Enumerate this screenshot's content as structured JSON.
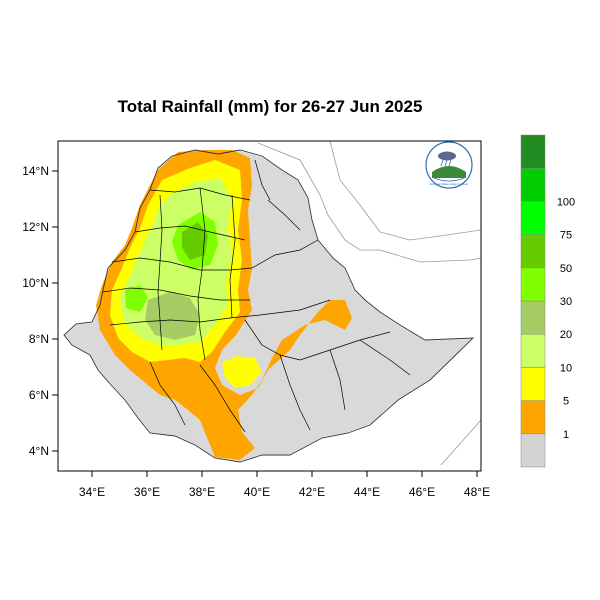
{
  "title": "Total Rainfall (mm) for 26-27 Jun 2025",
  "axes": {
    "lat_ticks": [
      "14°N",
      "12°N",
      "10°N",
      "8°N",
      "6°N",
      "4°N"
    ],
    "lon_ticks": [
      "34°E",
      "36°E",
      "38°E",
      "40°E",
      "42°E",
      "44°E",
      "46°E",
      "48°E"
    ]
  },
  "legend": {
    "units": "mm",
    "classes": [
      {
        "color": "#d3d3d3"
      },
      {
        "color": "#ffa500"
      },
      {
        "color": "#ffff00"
      },
      {
        "color": "#ccff66"
      },
      {
        "color": "#a6cc66"
      },
      {
        "color": "#80ff00"
      },
      {
        "color": "#66cc00"
      },
      {
        "color": "#00ff00"
      },
      {
        "color": "#00cc00"
      },
      {
        "color": "#228b22"
      }
    ],
    "boundaries": [
      "1",
      "5",
      "10",
      "20",
      "30",
      "50",
      "75",
      "100"
    ]
  },
  "colors": {
    "land_no_rain": "#d3d3d3",
    "rain_1_5": "#ffa500",
    "rain_5_10": "#ffff00",
    "rain_10_20": "#ccff66",
    "rain_20_30": "#a6cc66",
    "rain_30_50": "#80ff00",
    "rain_50_75": "#66cc00",
    "rain_75_100": "#00ff00",
    "rain_gt_100": "#228b22"
  },
  "logo": {
    "icon": "meteorology-agency-logo-icon",
    "text": "Ethiopian Meteorology Institute"
  }
}
